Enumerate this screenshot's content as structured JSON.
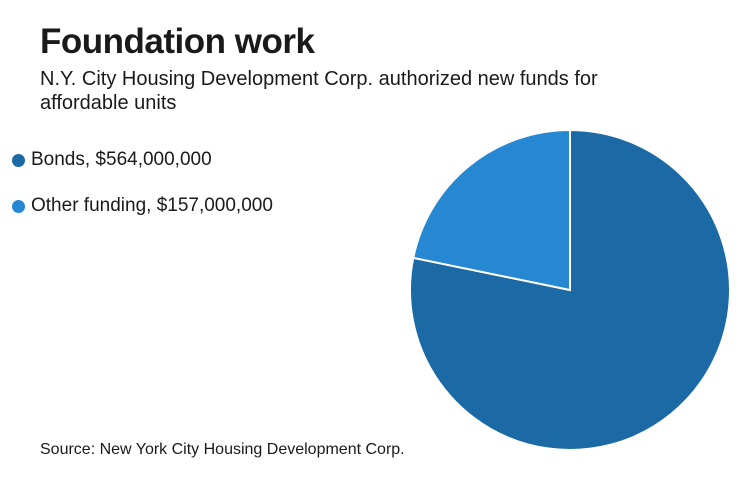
{
  "header": {
    "title": "Foundation work",
    "subtitle": "N.Y. City Housing Development Corp. authorized new funds for affordable units"
  },
  "legend": [
    {
      "label": "Bonds, $564,000,000",
      "color": "#1b6aa5"
    },
    {
      "label": "Other funding, $157,000,000",
      "color": "#2688d3"
    }
  ],
  "footer": {
    "source": "Source: New York City Housing Development Corp."
  },
  "chart_data": {
    "type": "pie",
    "categories": [
      "Bonds",
      "Other funding"
    ],
    "values": [
      564000000,
      157000000
    ],
    "colors": [
      "#1b6aa5",
      "#2688d3"
    ],
    "title": "Foundation work",
    "subtitle": "N.Y. City Housing Development Corp. authorized new funds for affordable units",
    "legend_position": "left"
  }
}
